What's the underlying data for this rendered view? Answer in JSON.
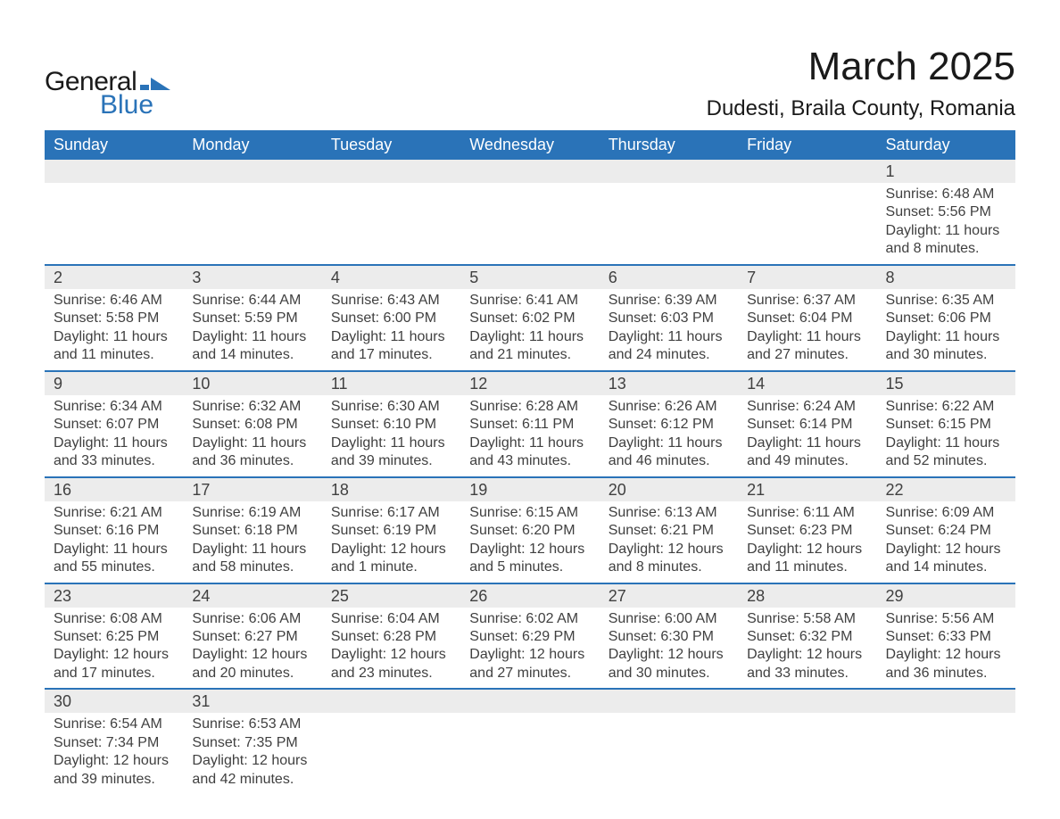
{
  "logo": {
    "text_general": "General",
    "text_blue": "Blue",
    "shape_color": "#2a73b8"
  },
  "title": "March 2025",
  "location": "Dudesti, Braila County, Romania",
  "colors": {
    "header_bg": "#2a73b8",
    "header_text": "#ffffff",
    "row_border": "#2a73b8",
    "daynum_bg": "#ececec",
    "body_text": "#404040",
    "page_bg": "#ffffff"
  },
  "day_headers": [
    "Sunday",
    "Monday",
    "Tuesday",
    "Wednesday",
    "Thursday",
    "Friday",
    "Saturday"
  ],
  "weeks": [
    [
      null,
      null,
      null,
      null,
      null,
      null,
      {
        "n": "1",
        "sunrise": "6:48 AM",
        "sunset": "5:56 PM",
        "daylight": "11 hours and 8 minutes."
      }
    ],
    [
      {
        "n": "2",
        "sunrise": "6:46 AM",
        "sunset": "5:58 PM",
        "daylight": "11 hours and 11 minutes."
      },
      {
        "n": "3",
        "sunrise": "6:44 AM",
        "sunset": "5:59 PM",
        "daylight": "11 hours and 14 minutes."
      },
      {
        "n": "4",
        "sunrise": "6:43 AM",
        "sunset": "6:00 PM",
        "daylight": "11 hours and 17 minutes."
      },
      {
        "n": "5",
        "sunrise": "6:41 AM",
        "sunset": "6:02 PM",
        "daylight": "11 hours and 21 minutes."
      },
      {
        "n": "6",
        "sunrise": "6:39 AM",
        "sunset": "6:03 PM",
        "daylight": "11 hours and 24 minutes."
      },
      {
        "n": "7",
        "sunrise": "6:37 AM",
        "sunset": "6:04 PM",
        "daylight": "11 hours and 27 minutes."
      },
      {
        "n": "8",
        "sunrise": "6:35 AM",
        "sunset": "6:06 PM",
        "daylight": "11 hours and 30 minutes."
      }
    ],
    [
      {
        "n": "9",
        "sunrise": "6:34 AM",
        "sunset": "6:07 PM",
        "daylight": "11 hours and 33 minutes."
      },
      {
        "n": "10",
        "sunrise": "6:32 AM",
        "sunset": "6:08 PM",
        "daylight": "11 hours and 36 minutes."
      },
      {
        "n": "11",
        "sunrise": "6:30 AM",
        "sunset": "6:10 PM",
        "daylight": "11 hours and 39 minutes."
      },
      {
        "n": "12",
        "sunrise": "6:28 AM",
        "sunset": "6:11 PM",
        "daylight": "11 hours and 43 minutes."
      },
      {
        "n": "13",
        "sunrise": "6:26 AM",
        "sunset": "6:12 PM",
        "daylight": "11 hours and 46 minutes."
      },
      {
        "n": "14",
        "sunrise": "6:24 AM",
        "sunset": "6:14 PM",
        "daylight": "11 hours and 49 minutes."
      },
      {
        "n": "15",
        "sunrise": "6:22 AM",
        "sunset": "6:15 PM",
        "daylight": "11 hours and 52 minutes."
      }
    ],
    [
      {
        "n": "16",
        "sunrise": "6:21 AM",
        "sunset": "6:16 PM",
        "daylight": "11 hours and 55 minutes."
      },
      {
        "n": "17",
        "sunrise": "6:19 AM",
        "sunset": "6:18 PM",
        "daylight": "11 hours and 58 minutes."
      },
      {
        "n": "18",
        "sunrise": "6:17 AM",
        "sunset": "6:19 PM",
        "daylight": "12 hours and 1 minute."
      },
      {
        "n": "19",
        "sunrise": "6:15 AM",
        "sunset": "6:20 PM",
        "daylight": "12 hours and 5 minutes."
      },
      {
        "n": "20",
        "sunrise": "6:13 AM",
        "sunset": "6:21 PM",
        "daylight": "12 hours and 8 minutes."
      },
      {
        "n": "21",
        "sunrise": "6:11 AM",
        "sunset": "6:23 PM",
        "daylight": "12 hours and 11 minutes."
      },
      {
        "n": "22",
        "sunrise": "6:09 AM",
        "sunset": "6:24 PM",
        "daylight": "12 hours and 14 minutes."
      }
    ],
    [
      {
        "n": "23",
        "sunrise": "6:08 AM",
        "sunset": "6:25 PM",
        "daylight": "12 hours and 17 minutes."
      },
      {
        "n": "24",
        "sunrise": "6:06 AM",
        "sunset": "6:27 PM",
        "daylight": "12 hours and 20 minutes."
      },
      {
        "n": "25",
        "sunrise": "6:04 AM",
        "sunset": "6:28 PM",
        "daylight": "12 hours and 23 minutes."
      },
      {
        "n": "26",
        "sunrise": "6:02 AM",
        "sunset": "6:29 PM",
        "daylight": "12 hours and 27 minutes."
      },
      {
        "n": "27",
        "sunrise": "6:00 AM",
        "sunset": "6:30 PM",
        "daylight": "12 hours and 30 minutes."
      },
      {
        "n": "28",
        "sunrise": "5:58 AM",
        "sunset": "6:32 PM",
        "daylight": "12 hours and 33 minutes."
      },
      {
        "n": "29",
        "sunrise": "5:56 AM",
        "sunset": "6:33 PM",
        "daylight": "12 hours and 36 minutes."
      }
    ],
    [
      {
        "n": "30",
        "sunrise": "6:54 AM",
        "sunset": "7:34 PM",
        "daylight": "12 hours and 39 minutes."
      },
      {
        "n": "31",
        "sunrise": "6:53 AM",
        "sunset": "7:35 PM",
        "daylight": "12 hours and 42 minutes."
      },
      null,
      null,
      null,
      null,
      null
    ]
  ],
  "labels": {
    "sunrise": "Sunrise: ",
    "sunset": "Sunset: ",
    "daylight": "Daylight: "
  }
}
